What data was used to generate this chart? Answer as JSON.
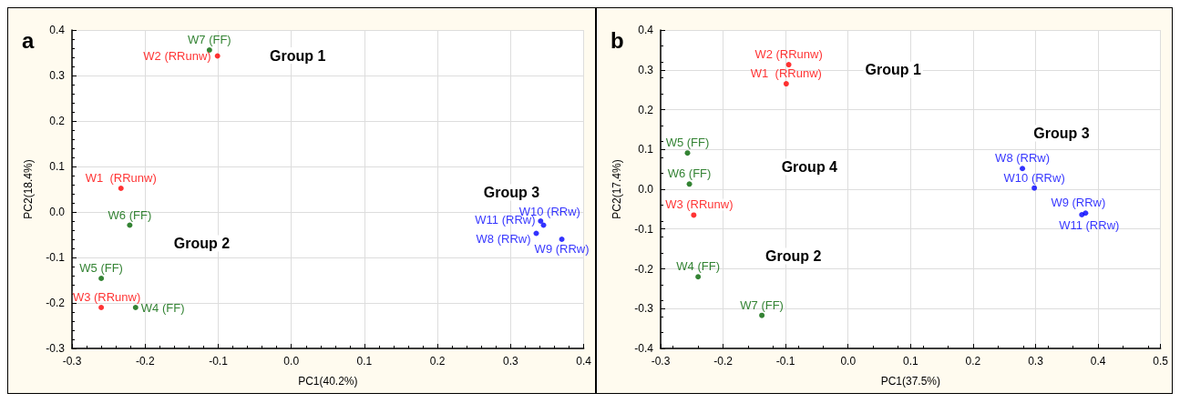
{
  "chart_data": [
    {
      "type": "scatter",
      "title": "a",
      "xlabel": "PC1(40.2%)",
      "ylabel": "PC2(18.4%)",
      "xlim": [
        -0.3,
        0.4
      ],
      "ylim": [
        -0.3,
        0.4
      ],
      "xticks": [
        -0.3,
        -0.2,
        -0.1,
        {
          "value": 0,
          "label": "0.0"
        },
        0.1,
        0.2,
        0.3,
        0.4
      ],
      "yticks": [
        -0.3,
        -0.2,
        -0.1,
        {
          "value": 0,
          "label": "0.0"
        },
        0.1,
        0.2,
        0.3,
        0.4
      ],
      "grid": true,
      "marker": "circle",
      "series": [
        {
          "color": "#ff0000",
          "x": [
            -0.233,
            -0.101,
            -0.26
          ],
          "values": [
            0.052,
            0.343,
            -0.21
          ],
          "value_labels": [
            "W1  (RRunw)",
            "W2 (RRunw)",
            "W3 (RRunw)"
          ]
        },
        {
          "color": "#006400",
          "x": [
            -0.213,
            -0.26,
            -0.221,
            -0.112
          ],
          "values": [
            -0.21,
            -0.146,
            -0.029,
            0.356
          ],
          "value_labels": [
            "W4 (FF)",
            "W5 (FF)",
            "W6 (FF)",
            "W7 (FF)"
          ]
        },
        {
          "color": "#0000ff",
          "x": [
            0.335,
            0.37,
            0.341,
            0.345
          ],
          "values": [
            -0.047,
            -0.06,
            -0.02,
            -0.029
          ],
          "value_labels": [
            "W8 (RRw)",
            "W9 (RRw)",
            "W10 (RRw)",
            "W11 (RRw)"
          ]
        }
      ],
      "annotations": [
        "Group 1",
        "Group 2",
        "Group 3"
      ]
    },
    {
      "type": "scatter",
      "title": "b",
      "xlabel": "PC1(37.5%)",
      "ylabel": "PC2(17.4%)",
      "xlim": [
        -0.3,
        0.5
      ],
      "ylim": [
        -0.4,
        0.4
      ],
      "xticks": [
        -0.3,
        -0.2,
        -0.1,
        {
          "value": 0,
          "label": "0.0"
        },
        0.1,
        0.2,
        0.3,
        0.4,
        0.5
      ],
      "yticks": [
        -0.4,
        -0.3,
        -0.2,
        -0.1,
        {
          "value": 0,
          "label": "0.0"
        },
        0.1,
        0.2,
        0.3,
        0.4
      ],
      "grid": true,
      "marker": "circle",
      "series": [
        {
          "color": "#ff0000",
          "x": [
            -0.099,
            -0.095,
            -0.247
          ],
          "values": [
            0.265,
            0.313,
            -0.065
          ],
          "value_labels": [
            "W1  (RRunw)",
            "W2 (RRunw)",
            "W3 (RRunw)"
          ]
        },
        {
          "color": "#006400",
          "x": [
            -0.24,
            -0.257,
            -0.254,
            -0.138
          ],
          "values": [
            -0.22,
            0.091,
            0.013,
            -0.317
          ],
          "value_labels": [
            "W4 (FF)",
            "W5 (FF)",
            "W6 (FF)",
            "W7 (FF)"
          ]
        },
        {
          "color": "#0000ff",
          "x": [
            0.279,
            0.38,
            0.298,
            0.374
          ],
          "values": [
            0.052,
            -0.06,
            0.003,
            -0.064
          ],
          "value_labels": [
            "W8 (RRw)",
            "W9 (RRw)",
            "W10 (RRw)",
            "W11 (RRw)"
          ]
        }
      ],
      "annotations": [
        "Group 1",
        "Group 3",
        "Group 4",
        "Group 2"
      ]
    }
  ]
}
